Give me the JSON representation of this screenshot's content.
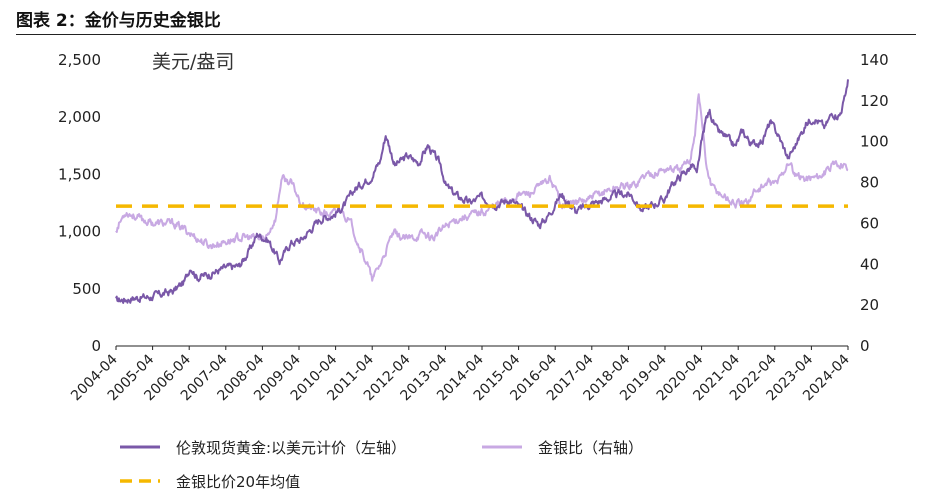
{
  "figure": {
    "title": "图表 2：金价与历史金银比"
  },
  "chart_data": {
    "type": "line",
    "unit_label": "美元/盎司",
    "x_categories": [
      "2004-04",
      "2005-04",
      "2006-04",
      "2007-04",
      "2008-04",
      "2009-04",
      "2010-04",
      "2011-04",
      "2012-04",
      "2013-04",
      "2014-04",
      "2015-04",
      "2016-04",
      "2017-04",
      "2018-04",
      "2019-04",
      "2020-04",
      "2021-04",
      "2022-04",
      "2023-04",
      "2024-04"
    ],
    "y_left": {
      "range": [
        0,
        2500
      ],
      "ticks": [
        0,
        500,
        1000,
        1500,
        2000,
        2500
      ],
      "tick_labels": [
        "0",
        "500",
        "1,000",
        "1,500",
        "2,000",
        "2,500"
      ]
    },
    "y_right": {
      "range": [
        0,
        140
      ],
      "ticks": [
        0,
        20,
        40,
        60,
        80,
        100,
        120,
        140
      ],
      "tick_labels": [
        "0",
        "20",
        "40",
        "60",
        "80",
        "100",
        "120",
        "140"
      ]
    },
    "series": [
      {
        "name": "伦敦现货黄金:以美元计价（左轴）",
        "axis": "left",
        "color": "#7a58a8",
        "points": [
          [
            2004.33,
            395
          ],
          [
            2004.8,
            420
          ],
          [
            2005.3,
            430
          ],
          [
            2005.9,
            480
          ],
          [
            2006.2,
            560
          ],
          [
            2006.37,
            700
          ],
          [
            2006.55,
            600
          ],
          [
            2006.9,
            630
          ],
          [
            2007.3,
            680
          ],
          [
            2007.7,
            700
          ],
          [
            2007.95,
            820
          ],
          [
            2008.2,
            980
          ],
          [
            2008.5,
            920
          ],
          [
            2008.8,
            740
          ],
          [
            2009.1,
            900
          ],
          [
            2009.4,
            930
          ],
          [
            2009.9,
            1110
          ],
          [
            2010.3,
            1150
          ],
          [
            2010.6,
            1240
          ],
          [
            2010.85,
            1370
          ],
          [
            2011.3,
            1480
          ],
          [
            2011.55,
            1620
          ],
          [
            2011.7,
            1850
          ],
          [
            2011.95,
            1580
          ],
          [
            2012.3,
            1660
          ],
          [
            2012.6,
            1600
          ],
          [
            2012.85,
            1750
          ],
          [
            2013.2,
            1580
          ],
          [
            2013.35,
            1400
          ],
          [
            2013.6,
            1320
          ],
          [
            2014.0,
            1250
          ],
          [
            2014.3,
            1300
          ],
          [
            2014.7,
            1240
          ],
          [
            2015.1,
            1280
          ],
          [
            2015.4,
            1200
          ],
          [
            2015.9,
            1060
          ],
          [
            2016.1,
            1120
          ],
          [
            2016.5,
            1330
          ],
          [
            2016.9,
            1170
          ],
          [
            2017.2,
            1230
          ],
          [
            2017.6,
            1270
          ],
          [
            2018.1,
            1330
          ],
          [
            2018.4,
            1320
          ],
          [
            2018.7,
            1190
          ],
          [
            2018.9,
            1220
          ],
          [
            2019.3,
            1280
          ],
          [
            2019.55,
            1420
          ],
          [
            2019.8,
            1500
          ],
          [
            2020.1,
            1580
          ],
          [
            2020.2,
            1480
          ],
          [
            2020.3,
            1720
          ],
          [
            2020.45,
            1980
          ],
          [
            2020.55,
            2050
          ],
          [
            2020.75,
            1880
          ],
          [
            2021.0,
            1820
          ],
          [
            2021.25,
            1740
          ],
          [
            2021.45,
            1880
          ],
          [
            2021.7,
            1760
          ],
          [
            2022.0,
            1800
          ],
          [
            2022.2,
            1950
          ],
          [
            2022.4,
            1860
          ],
          [
            2022.7,
            1640
          ],
          [
            2022.9,
            1760
          ],
          [
            2023.2,
            1950
          ],
          [
            2023.4,
            2000
          ],
          [
            2023.7,
            1910
          ],
          [
            2023.9,
            2040
          ],
          [
            2024.1,
            2020
          ],
          [
            2024.25,
            2170
          ],
          [
            2024.33,
            2330
          ]
        ]
      },
      {
        "name": "金银比（右轴）",
        "axis": "right",
        "color": "#c8a9e3",
        "points": [
          [
            2004.33,
            57
          ],
          [
            2004.6,
            66
          ],
          [
            2005.0,
            62
          ],
          [
            2005.4,
            60
          ],
          [
            2005.9,
            60
          ],
          [
            2006.3,
            56
          ],
          [
            2006.6,
            52
          ],
          [
            2006.9,
            49
          ],
          [
            2007.3,
            51
          ],
          [
            2007.7,
            53
          ],
          [
            2008.0,
            53
          ],
          [
            2008.4,
            52
          ],
          [
            2008.7,
            63
          ],
          [
            2008.85,
            82
          ],
          [
            2009.1,
            80
          ],
          [
            2009.4,
            70
          ],
          [
            2009.8,
            66
          ],
          [
            2010.2,
            64
          ],
          [
            2010.5,
            67
          ],
          [
            2010.8,
            58
          ],
          [
            2011.0,
            48
          ],
          [
            2011.2,
            40
          ],
          [
            2011.33,
            32
          ],
          [
            2011.6,
            42
          ],
          [
            2011.9,
            55
          ],
          [
            2012.3,
            52
          ],
          [
            2012.7,
            55
          ],
          [
            2013.0,
            53
          ],
          [
            2013.3,
            58
          ],
          [
            2013.6,
            62
          ],
          [
            2014.0,
            64
          ],
          [
            2014.4,
            66
          ],
          [
            2014.7,
            69
          ],
          [
            2015.0,
            71
          ],
          [
            2015.3,
            74
          ],
          [
            2015.7,
            75
          ],
          [
            2016.0,
            79
          ],
          [
            2016.2,
            82
          ],
          [
            2016.5,
            70
          ],
          [
            2016.9,
            70
          ],
          [
            2017.3,
            72
          ],
          [
            2017.7,
            76
          ],
          [
            2018.1,
            78
          ],
          [
            2018.5,
            79
          ],
          [
            2018.8,
            84
          ],
          [
            2019.1,
            85
          ],
          [
            2019.4,
            87
          ],
          [
            2019.7,
            86
          ],
          [
            2020.0,
            90
          ],
          [
            2020.15,
            105
          ],
          [
            2020.25,
            124
          ],
          [
            2020.35,
            108
          ],
          [
            2020.45,
            89
          ],
          [
            2020.6,
            78
          ],
          [
            2020.9,
            74
          ],
          [
            2021.2,
            70
          ],
          [
            2021.5,
            69
          ],
          [
            2021.8,
            76
          ],
          [
            2022.1,
            79
          ],
          [
            2022.4,
            80
          ],
          [
            2022.7,
            90
          ],
          [
            2022.9,
            83
          ],
          [
            2023.2,
            82
          ],
          [
            2023.5,
            83
          ],
          [
            2023.8,
            86
          ],
          [
            2024.0,
            89
          ],
          [
            2024.2,
            90
          ],
          [
            2024.33,
            86
          ]
        ]
      },
      {
        "name": "金银比价20年均值",
        "axis": "right",
        "color": "#f5b800",
        "style": "dashed",
        "points": [
          [
            2004.33,
            68.5
          ],
          [
            2024.33,
            68.5
          ]
        ]
      }
    ]
  }
}
